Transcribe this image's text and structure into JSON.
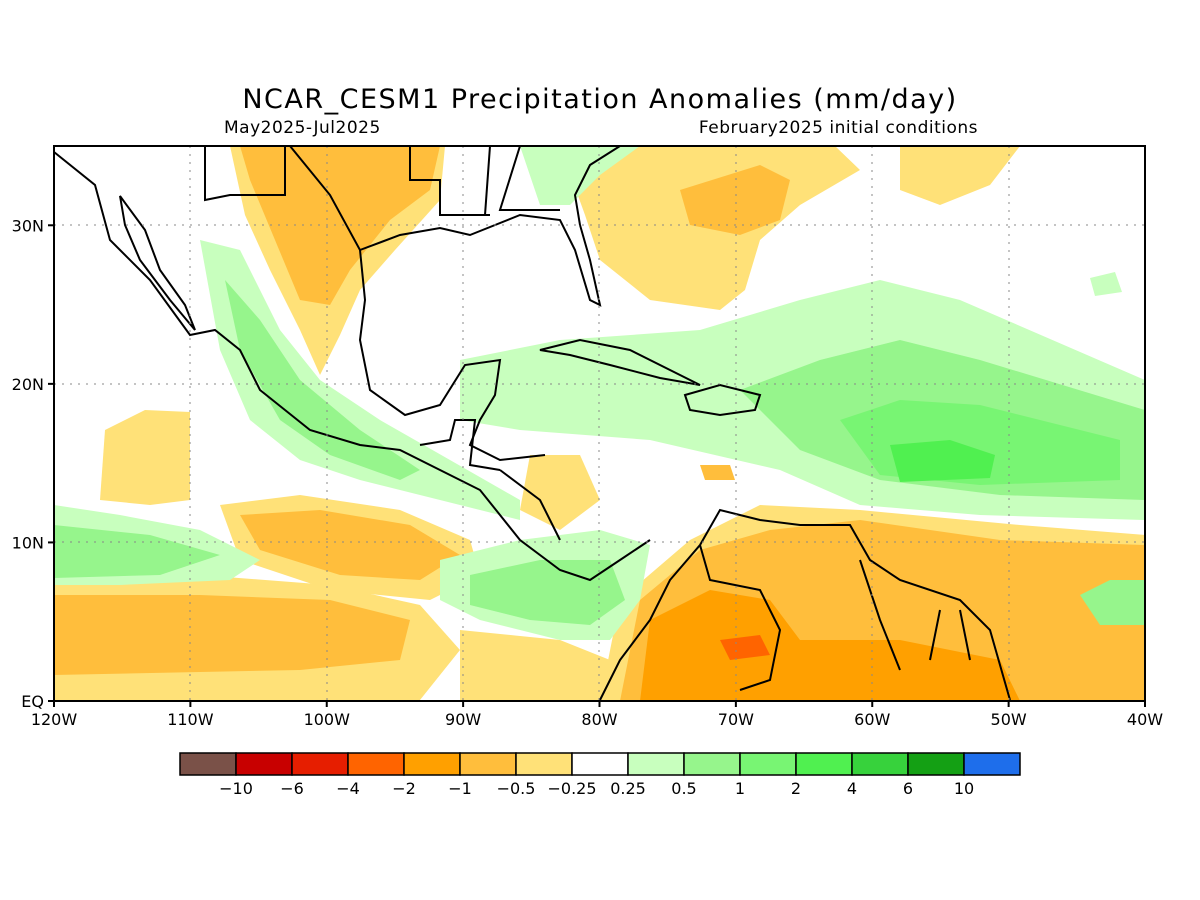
{
  "header": {
    "title": "NCAR_CESM1 Precipitation Anomalies (mm/day)",
    "period": "May2025-Jul2025",
    "init": "February2025 initial conditions"
  },
  "map": {
    "lon_range": [
      -120,
      -40
    ],
    "lat_range": [
      0,
      35
    ],
    "x_ticks": [
      {
        "lon": -120,
        "label": "120W"
      },
      {
        "lon": -110,
        "label": "110W"
      },
      {
        "lon": -100,
        "label": "100W"
      },
      {
        "lon": -90,
        "label": "90W"
      },
      {
        "lon": -80,
        "label": "80W"
      },
      {
        "lon": -70,
        "label": "70W"
      },
      {
        "lon": -60,
        "label": "60W"
      },
      {
        "lon": -50,
        "label": "50W"
      },
      {
        "lon": -40,
        "label": "40W"
      }
    ],
    "y_ticks": [
      {
        "lat": 0,
        "label": "EQ"
      },
      {
        "lat": 10,
        "label": "10N"
      },
      {
        "lat": 20,
        "label": "20N"
      },
      {
        "lat": 30,
        "label": "30N"
      }
    ],
    "grid": "dotted"
  },
  "colorbar": {
    "colors": [
      "#7a5148",
      "#c80000",
      "#e61e00",
      "#ff6400",
      "#ffa000",
      "#ffbe3c",
      "#ffe178",
      "#ffffff",
      "#c8ffbe",
      "#96f58c",
      "#78f573",
      "#50f050",
      "#37d23c",
      "#14a014",
      "#1e6eeb"
    ],
    "labels": [
      "−10",
      "−6",
      "−4",
      "−2",
      "−1",
      "−0.5",
      "−0.25",
      "0.25",
      "0.5",
      "1",
      "2",
      "4",
      "6",
      "10"
    ]
  }
}
